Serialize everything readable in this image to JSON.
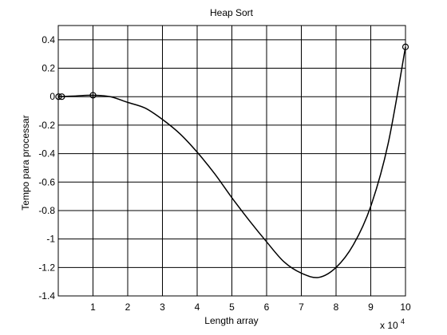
{
  "chart_data": {
    "type": "line",
    "title": "Heap Sort",
    "xlabel": "Length array",
    "ylabel": "Tempo para processar",
    "x_exponent_base": "x 10",
    "x_exponent_power": "4",
    "xlim": [
      0,
      10
    ],
    "ylim": [
      -1.4,
      0.5
    ],
    "grid": true,
    "xticks": [
      1,
      2,
      3,
      4,
      5,
      6,
      7,
      8,
      9,
      10
    ],
    "yticks": [
      0.4,
      0.2,
      0,
      -0.2,
      -0.4,
      -0.6,
      -0.8,
      -1,
      -1.2,
      -1.4
    ],
    "xtick_labels": [
      "1",
      "2",
      "3",
      "4",
      "5",
      "6",
      "7",
      "8",
      "9",
      "10"
    ],
    "ytick_labels": [
      "0.4",
      "0.2",
      "0",
      "-0.2",
      "-0.4",
      "-0.6",
      "-0.8",
      "-1",
      "-1.2",
      "-1.4"
    ],
    "series": [
      {
        "line": {
          "x": [
            0,
            0.5,
            1,
            1.5,
            2,
            2.5,
            3,
            3.5,
            4,
            4.5,
            5,
            5.5,
            6,
            6.5,
            7,
            7.5,
            8,
            8.5,
            9,
            9.5,
            10
          ],
          "y": [
            0,
            0.005,
            0.01,
            0.0,
            -0.04,
            -0.08,
            -0.16,
            -0.26,
            -0.39,
            -0.54,
            -0.71,
            -0.87,
            -1.02,
            -1.16,
            -1.24,
            -1.27,
            -1.2,
            -1.04,
            -0.77,
            -0.33,
            0.35
          ]
        },
        "markers": {
          "x": [
            0.01,
            0.1,
            1,
            10
          ],
          "y": [
            0,
            0,
            0.01,
            0.35
          ]
        }
      }
    ]
  }
}
